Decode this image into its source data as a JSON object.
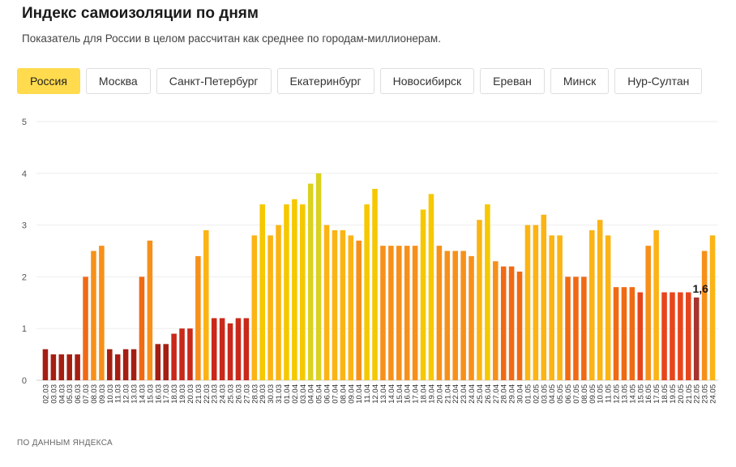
{
  "title": "Индекс самоизоляции по дням",
  "subtitle": "Показатель для России в целом рассчитан как среднее по городам-миллионерам.",
  "tabs": [
    {
      "label": "Россия",
      "active": true
    },
    {
      "label": "Москва",
      "active": false
    },
    {
      "label": "Санкт-Петербург",
      "active": false
    },
    {
      "label": "Екатеринбург",
      "active": false
    },
    {
      "label": "Новосибирск",
      "active": false
    },
    {
      "label": "Ереван",
      "active": false
    },
    {
      "label": "Минск",
      "active": false
    },
    {
      "label": "Нур-Султан",
      "active": false
    }
  ],
  "footer": "ПО ДАННЫМ ЯНДЕКСА",
  "colors": {
    "accent_tab": "#ffdb4d",
    "scale": [
      "#a51e12",
      "#c9281a",
      "#e7451c",
      "#f06a14",
      "#f7901a",
      "#fbb414",
      "#f5c800",
      "#d9d21f"
    ],
    "last_bar": "#a6332d"
  },
  "chart_data": {
    "type": "bar",
    "categories": [
      "02.03",
      "03.03",
      "04.03",
      "05.03",
      "06.03",
      "07.03",
      "08.03",
      "09.03",
      "10.03",
      "11.03",
      "12.03",
      "13.03",
      "14.03",
      "15.03",
      "16.03",
      "17.03",
      "18.03",
      "19.03",
      "20.03",
      "21.03",
      "22.03",
      "23.03",
      "24.03",
      "25.03",
      "26.03",
      "27.03",
      "28.03",
      "29.03",
      "30.03",
      "31.03",
      "01.04",
      "02.04",
      "03.04",
      "04.04",
      "05.04",
      "06.04",
      "07.04",
      "08.04",
      "09.04",
      "10.04",
      "11.04",
      "12.04",
      "13.04",
      "14.04",
      "15.04",
      "16.04",
      "17.04",
      "18.04",
      "19.04",
      "20.04",
      "21.04",
      "22.04",
      "23.04",
      "24.04",
      "25.04",
      "26.04",
      "27.04",
      "28.04",
      "29.04",
      "30.04",
      "01.05",
      "02.05",
      "03.05",
      "04.05",
      "05.05",
      "06.05",
      "07.05",
      "08.05",
      "09.05",
      "10.05",
      "11.05",
      "12.05",
      "13.05",
      "14.05",
      "15.05",
      "16.05",
      "17.05",
      "18.05",
      "19.05",
      "20.05",
      "21.05",
      "22.05",
      "23.05",
      "24.05"
    ],
    "values": [
      0.6,
      0.5,
      0.5,
      0.5,
      0.5,
      2.0,
      2.5,
      2.6,
      0.6,
      0.5,
      0.6,
      0.6,
      2.0,
      2.7,
      0.7,
      0.7,
      0.9,
      1.0,
      1.0,
      2.4,
      2.9,
      1.2,
      1.2,
      1.1,
      1.2,
      1.2,
      2.8,
      3.4,
      2.8,
      3.0,
      3.4,
      3.5,
      3.4,
      3.8,
      4.0,
      3.0,
      2.9,
      2.9,
      2.8,
      2.7,
      3.4,
      3.7,
      2.6,
      2.6,
      2.6,
      2.6,
      2.6,
      3.3,
      3.6,
      2.6,
      2.5,
      2.5,
      2.5,
      2.4,
      3.1,
      3.4,
      2.3,
      2.2,
      2.2,
      2.1,
      3.0,
      3.0,
      3.2,
      2.8,
      2.8,
      2.0,
      2.0,
      2.0,
      2.9,
      3.1,
      2.8,
      1.8,
      1.8,
      1.8,
      1.7,
      2.6,
      2.9,
      1.7,
      1.7,
      1.7,
      1.7,
      1.6,
      2.5,
      2.8
    ],
    "ylim": [
      0,
      5
    ],
    "yticks": [
      0,
      1,
      2,
      3,
      4,
      5
    ],
    "grid": true,
    "annotation": {
      "category": "22.05",
      "label": "1,6"
    }
  }
}
